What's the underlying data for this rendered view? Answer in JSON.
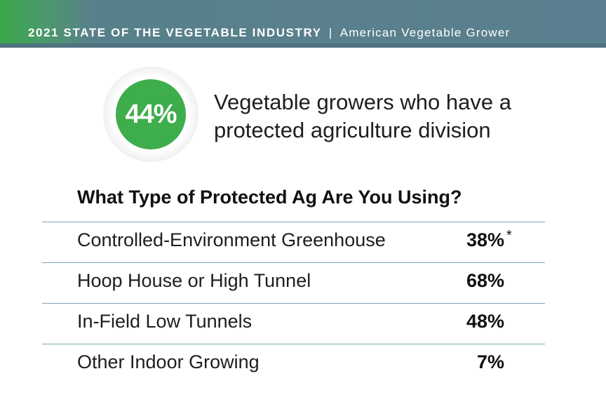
{
  "header": {
    "title": "2021 STATE OF THE VEGETABLE INDUSTRY",
    "separator": "|",
    "publication": "American Vegetable Grower",
    "colors": {
      "green": "#3aa84a",
      "slate": "#5a7f8e"
    }
  },
  "headline_stat": {
    "value": "44%",
    "caption_line1": "Vegetable growers who have a",
    "caption_line2": "protected agriculture division",
    "color": "#3ead4b"
  },
  "chart_data": {
    "type": "table",
    "title": "What Type of Protected Ag Are You Using?",
    "rows": [
      {
        "label": "Controlled-Environment Greenhouse",
        "value": 38,
        "display": "38%",
        "note": "*"
      },
      {
        "label": "Hoop House or High Tunnel",
        "value": 68,
        "display": "68%",
        "note": ""
      },
      {
        "label": "In-Field Low Tunnels",
        "value": 48,
        "display": "48%",
        "note": ""
      },
      {
        "label": "Other Indoor Growing",
        "value": 7,
        "display": "7%",
        "note": ""
      }
    ],
    "unit": "%",
    "divider_color": "#7ba7b2"
  }
}
